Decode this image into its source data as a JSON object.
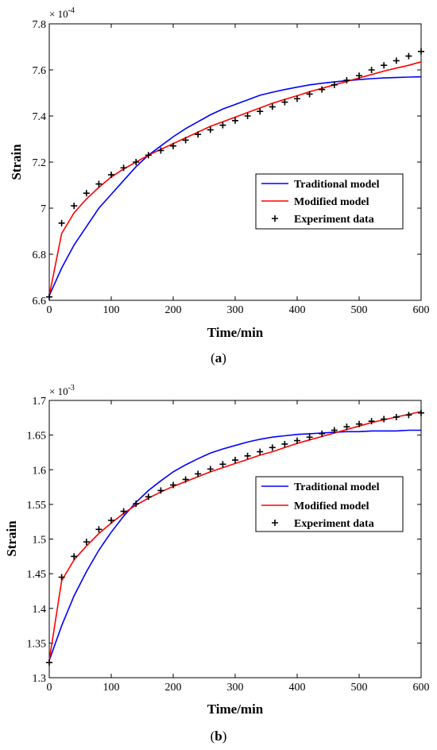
{
  "chart_data": [
    {
      "type": "line",
      "caption": "(a)",
      "caption_bold": "a",
      "xlabel": "Time/min",
      "ylabel": "Strain",
      "multiplier_base": "× 10",
      "multiplier_exp": "-4",
      "xlim": [
        0,
        600
      ],
      "ylim": [
        6.6,
        7.8
      ],
      "xticks": [
        0,
        100,
        200,
        300,
        400,
        500,
        600
      ],
      "yticks": [
        6.6,
        6.8,
        7,
        7.2,
        7.4,
        7.6,
        7.8
      ],
      "ytick_labels": [
        "6.6",
        "6.8",
        "7",
        "7.2",
        "7.4",
        "7.6",
        "7.8"
      ],
      "legend_position": "center-right",
      "series": [
        {
          "name": "Traditional model",
          "style": "line",
          "color": "#0000ff",
          "x": [
            0,
            20,
            40,
            60,
            80,
            100,
            120,
            140,
            160,
            180,
            200,
            220,
            240,
            260,
            280,
            300,
            320,
            340,
            360,
            380,
            400,
            420,
            440,
            460,
            480,
            500,
            520,
            540,
            560,
            580,
            600
          ],
          "y": [
            6.62,
            6.74,
            6.84,
            6.92,
            7.0,
            7.06,
            7.12,
            7.18,
            7.23,
            7.27,
            7.31,
            7.345,
            7.375,
            7.405,
            7.43,
            7.45,
            7.47,
            7.49,
            7.503,
            7.515,
            7.525,
            7.535,
            7.542,
            7.548,
            7.553,
            7.558,
            7.562,
            7.565,
            7.567,
            7.569,
            7.57
          ]
        },
        {
          "name": "Modified model",
          "style": "line",
          "color": "#ff0000",
          "x": [
            0,
            20,
            40,
            60,
            80,
            100,
            120,
            140,
            160,
            180,
            200,
            220,
            240,
            260,
            280,
            300,
            320,
            340,
            360,
            380,
            400,
            420,
            440,
            460,
            480,
            500,
            520,
            540,
            560,
            580,
            600
          ],
          "y": [
            6.62,
            6.89,
            6.98,
            7.04,
            7.09,
            7.135,
            7.17,
            7.2,
            7.23,
            7.255,
            7.28,
            7.305,
            7.33,
            7.355,
            7.375,
            7.395,
            7.415,
            7.435,
            7.455,
            7.472,
            7.488,
            7.505,
            7.52,
            7.535,
            7.55,
            7.565,
            7.58,
            7.595,
            7.608,
            7.62,
            7.635
          ]
        },
        {
          "name": "Experiment data",
          "style": "marker",
          "color": "#000000",
          "x": [
            0,
            20,
            40,
            60,
            80,
            100,
            120,
            140,
            160,
            180,
            200,
            220,
            240,
            260,
            280,
            300,
            320,
            340,
            360,
            380,
            400,
            420,
            440,
            460,
            480,
            500,
            520,
            540,
            560,
            580,
            600
          ],
          "y": [
            6.615,
            6.935,
            7.01,
            7.065,
            7.105,
            7.145,
            7.175,
            7.2,
            7.23,
            7.25,
            7.27,
            7.295,
            7.32,
            7.34,
            7.36,
            7.38,
            7.4,
            7.42,
            7.44,
            7.46,
            7.475,
            7.495,
            7.515,
            7.535,
            7.555,
            7.575,
            7.6,
            7.62,
            7.64,
            7.66,
            7.68
          ]
        }
      ]
    },
    {
      "type": "line",
      "caption": "(b)",
      "caption_bold": "b",
      "xlabel": "Time/min",
      "ylabel": "Strain",
      "multiplier_base": "× 10",
      "multiplier_exp": "-3",
      "xlim": [
        0,
        600
      ],
      "ylim": [
        1.3,
        1.7
      ],
      "xticks": [
        0,
        100,
        200,
        300,
        400,
        500,
        600
      ],
      "yticks": [
        1.3,
        1.35,
        1.4,
        1.45,
        1.5,
        1.55,
        1.6,
        1.65,
        1.7
      ],
      "ytick_labels": [
        "1.3",
        "1.35",
        "1.4",
        "1.45",
        "1.5",
        "1.55",
        "1.6",
        "1.65",
        "1.7"
      ],
      "legend_position": "center-right",
      "series": [
        {
          "name": "Traditional model",
          "style": "line",
          "color": "#0000ff",
          "x": [
            0,
            20,
            40,
            60,
            80,
            100,
            120,
            140,
            160,
            180,
            200,
            220,
            240,
            260,
            280,
            300,
            320,
            340,
            360,
            380,
            400,
            420,
            440,
            460,
            480,
            500,
            520,
            540,
            560,
            580,
            600
          ],
          "y": [
            1.325,
            1.375,
            1.418,
            1.453,
            1.484,
            1.51,
            1.533,
            1.553,
            1.57,
            1.584,
            1.597,
            1.607,
            1.616,
            1.624,
            1.63,
            1.635,
            1.64,
            1.644,
            1.647,
            1.649,
            1.651,
            1.652,
            1.653,
            1.654,
            1.655,
            1.655,
            1.656,
            1.656,
            1.656,
            1.657,
            1.657
          ]
        },
        {
          "name": "Modified model",
          "style": "line",
          "color": "#ff0000",
          "x": [
            0,
            20,
            40,
            60,
            80,
            100,
            120,
            140,
            160,
            180,
            200,
            220,
            240,
            260,
            280,
            300,
            320,
            340,
            360,
            380,
            400,
            420,
            440,
            460,
            480,
            500,
            520,
            540,
            560,
            580,
            600
          ],
          "y": [
            1.325,
            1.44,
            1.47,
            1.49,
            1.508,
            1.523,
            1.537,
            1.549,
            1.559,
            1.568,
            1.576,
            1.583,
            1.59,
            1.597,
            1.603,
            1.609,
            1.615,
            1.621,
            1.626,
            1.632,
            1.638,
            1.643,
            1.648,
            1.653,
            1.658,
            1.663,
            1.668,
            1.672,
            1.676,
            1.68,
            1.684
          ]
        },
        {
          "name": "Experiment data",
          "style": "marker",
          "color": "#000000",
          "x": [
            0,
            20,
            40,
            60,
            80,
            100,
            120,
            140,
            160,
            180,
            200,
            220,
            240,
            260,
            280,
            300,
            320,
            340,
            360,
            380,
            400,
            420,
            440,
            460,
            480,
            500,
            520,
            540,
            560,
            580,
            600
          ],
          "y": [
            1.322,
            1.445,
            1.475,
            1.496,
            1.514,
            1.527,
            1.54,
            1.551,
            1.561,
            1.57,
            1.578,
            1.586,
            1.594,
            1.601,
            1.608,
            1.614,
            1.62,
            1.626,
            1.632,
            1.637,
            1.642,
            1.647,
            1.652,
            1.657,
            1.662,
            1.666,
            1.67,
            1.673,
            1.676,
            1.679,
            1.682
          ]
        }
      ]
    }
  ]
}
